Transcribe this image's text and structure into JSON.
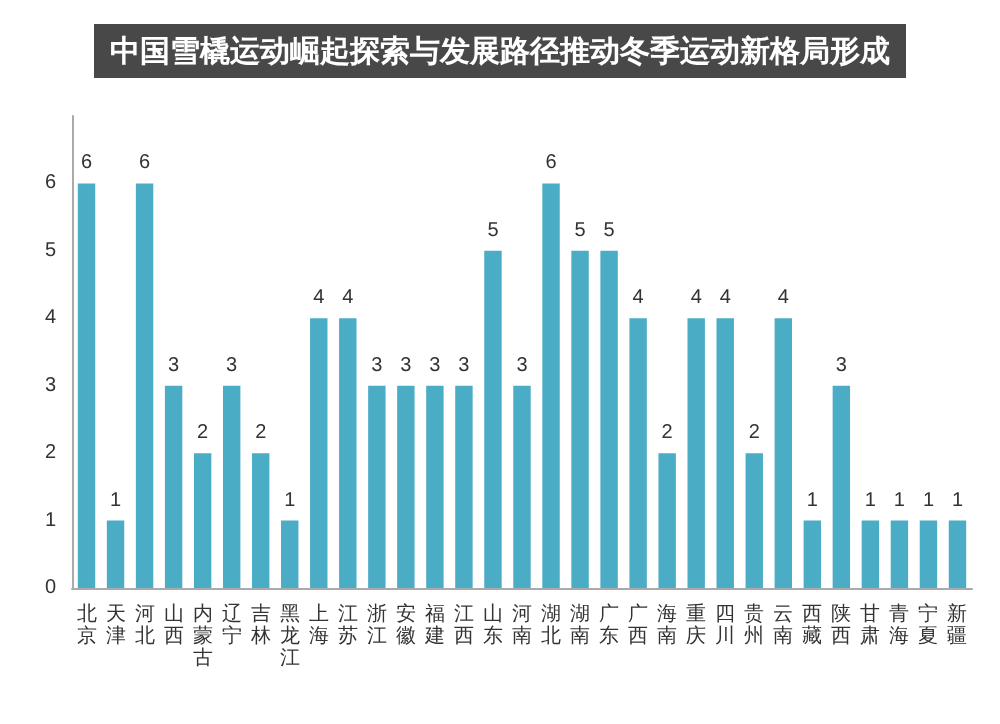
{
  "chart_data": {
    "type": "bar",
    "title": "中国雪橇运动崛起探索与发展路径推动冬季运动新格局形成",
    "categories": [
      "北京",
      "天津",
      "河北",
      "山西",
      "内蒙古",
      "辽宁",
      "吉林",
      "黑龙江",
      "上海",
      "江苏",
      "浙江",
      "安徽",
      "福建",
      "江西",
      "山东",
      "河南",
      "湖北",
      "湖南",
      "广东",
      "广西",
      "海南",
      "重庆",
      "四川",
      "贵州",
      "云南",
      "西藏",
      "陕西",
      "甘肃",
      "青海",
      "宁夏",
      "新疆"
    ],
    "values": [
      6,
      1,
      6,
      3,
      2,
      3,
      2,
      1,
      4,
      4,
      3,
      3,
      3,
      3,
      5,
      3,
      6,
      5,
      5,
      4,
      2,
      4,
      4,
      2,
      4,
      1,
      3,
      1,
      1,
      1,
      1
    ],
    "color": "#4bacc6",
    "ylim": [
      0,
      7
    ],
    "yticks": [
      0,
      1,
      2,
      3,
      4,
      5,
      6
    ],
    "data_labels": true,
    "grid": false
  }
}
